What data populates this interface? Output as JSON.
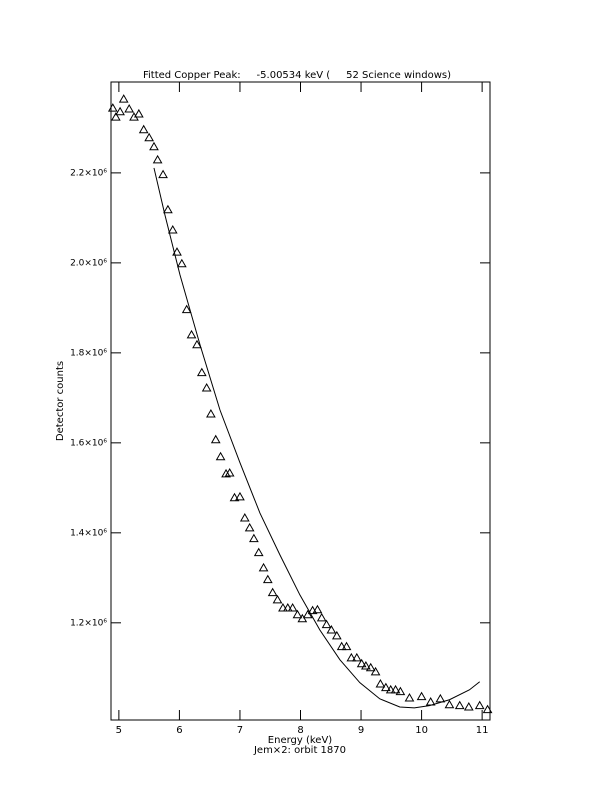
{
  "chart_data": {
    "type": "scatter",
    "title": "Fitted Copper Peak:     -5.00534 keV (     52 Science windows)",
    "xlabel": "Energy (keV)",
    "subtitle": "Jem×2: orbit 1870",
    "ylabel": "Detector counts",
    "xlim": [
      4.87,
      11.13
    ],
    "ylim": [
      984000,
      2402000
    ],
    "xticks": [
      5,
      6,
      7,
      8,
      9,
      10,
      11
    ],
    "yticks": [
      {
        "value": 1200000,
        "label": "1.2×10⁶"
      },
      {
        "value": 1400000,
        "label": "1.4×10⁶"
      },
      {
        "value": 1600000,
        "label": "1.6×10⁶"
      },
      {
        "value": 1800000,
        "label": "1.8×10⁶"
      },
      {
        "value": 2000000,
        "label": "2.0×10⁶"
      },
      {
        "value": 2200000,
        "label": "2.2×10⁶"
      }
    ],
    "series": [
      {
        "type": "scatter",
        "marker": "triangle",
        "color": "#000000",
        "x": [
          4.9,
          4.95,
          5.02,
          5.08,
          5.17,
          5.25,
          5.33,
          5.41,
          5.5,
          5.58,
          5.64,
          5.73,
          5.81,
          5.89,
          5.96,
          6.04,
          6.12,
          6.2,
          6.29,
          6.37,
          6.45,
          6.52,
          6.6,
          6.68,
          6.77,
          6.83,
          6.91,
          7.0,
          7.08,
          7.16,
          7.23,
          7.31,
          7.39,
          7.46,
          7.54,
          7.62,
          7.71,
          7.79,
          7.87,
          7.95,
          8.03,
          8.12,
          8.2,
          8.28,
          8.35,
          8.43,
          8.51,
          8.6,
          8.68,
          8.76,
          8.84,
          8.93,
          9.01,
          9.08,
          9.16,
          9.24,
          9.32,
          9.41,
          9.49,
          9.57,
          9.65,
          9.8,
          10.0,
          10.15,
          10.31,
          10.46,
          10.63,
          10.78,
          10.96,
          11.09
        ],
        "values": [
          2344000,
          2324000,
          2336000,
          2364000,
          2342000,
          2324000,
          2331000,
          2296000,
          2278000,
          2258000,
          2229000,
          2196000,
          2118000,
          2073000,
          2024000,
          1998000,
          1896000,
          1840000,
          1818000,
          1756000,
          1722000,
          1664000,
          1607000,
          1569000,
          1531000,
          1533000,
          1478000,
          1480000,
          1433000,
          1411000,
          1387000,
          1356000,
          1322000,
          1296000,
          1267000,
          1251000,
          1233000,
          1233000,
          1233000,
          1218000,
          1209000,
          1218000,
          1227000,
          1229000,
          1211000,
          1196000,
          1184000,
          1171000,
          1147000,
          1147000,
          1122000,
          1122000,
          1109000,
          1104000,
          1100000,
          1091000,
          1064000,
          1056000,
          1051000,
          1051000,
          1047000,
          1033000,
          1036000,
          1024000,
          1031000,
          1018000,
          1016000,
          1013000,
          1016000,
          1007000
        ]
      },
      {
        "type": "line",
        "color": "#000000",
        "x": [
          5.58,
          5.76,
          6.01,
          6.34,
          6.67,
          7.0,
          7.33,
          7.66,
          7.99,
          8.32,
          8.65,
          8.98,
          9.31,
          9.64,
          9.88,
          10.13,
          10.46,
          10.79,
          10.96
        ],
        "values": [
          2211000,
          2107000,
          1973000,
          1818000,
          1673000,
          1556000,
          1444000,
          1351000,
          1262000,
          1184000,
          1118000,
          1067000,
          1031000,
          1013000,
          1011000,
          1016000,
          1029000,
          1051000,
          1069000
        ]
      }
    ]
  }
}
